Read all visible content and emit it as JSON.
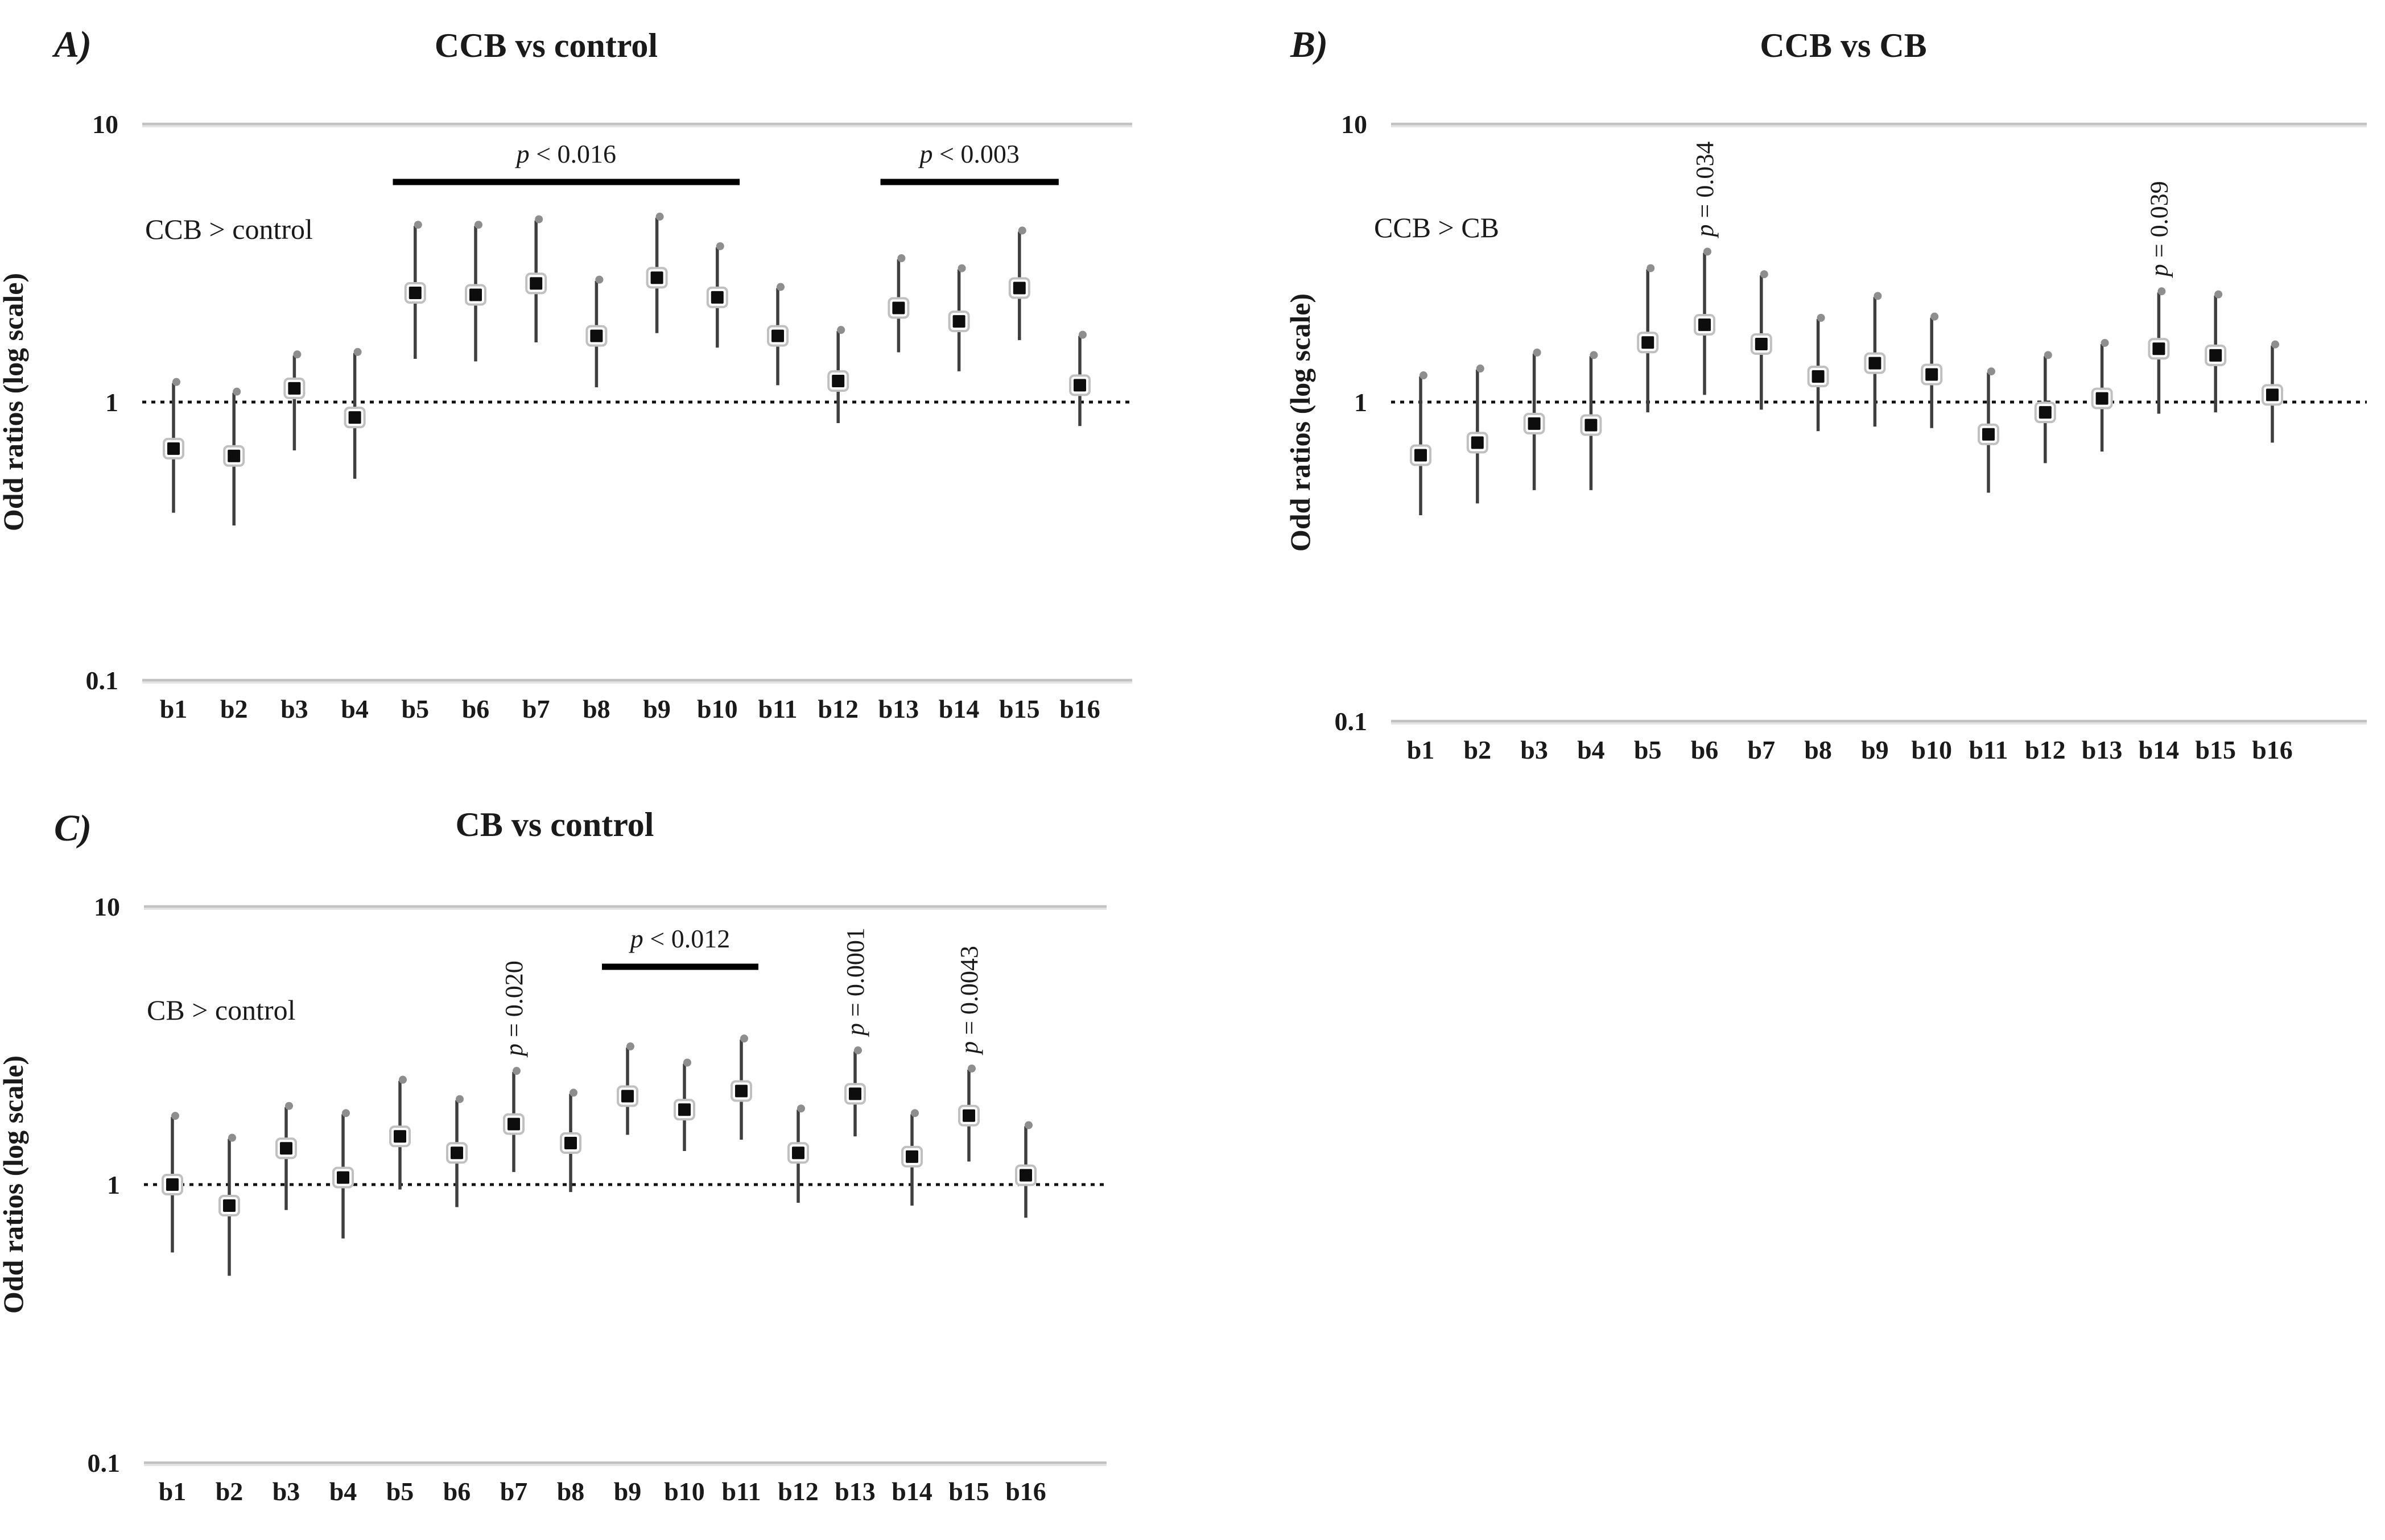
{
  "figure": {
    "background": "#ffffff",
    "colors": {
      "text": "#1a1a1a",
      "whisker": "#3f3f3f",
      "cap_dot": "#8e8e8e",
      "marker_fill": "#0d0d0d",
      "marker_box_fill": "#ffffff",
      "marker_box_stroke": "#c0c0c0",
      "gridline": "#c2c2c2",
      "gridline_soft": "#e4e4e4",
      "reference_line": "#111111",
      "bracket": "#000000"
    },
    "y_axis_title": "Odd ratios (log scale)",
    "y_ticks": [
      "10",
      "1",
      "0.1"
    ]
  },
  "chart_data": [
    {
      "id": "A",
      "panel_label": "A)",
      "title": "CCB vs control",
      "comparison_note": "CCB > control",
      "type": "scatter",
      "subtype": "forest-errorbar",
      "yscale": "log",
      "ylim": [
        0.1,
        10
      ],
      "reference_value": 1,
      "ylabel": "Odd ratios (log scale)",
      "grid": "horizontal-top-bottom-only",
      "legend": "none",
      "categories": [
        "b1",
        "b2",
        "b3",
        "b4",
        "b5",
        "b6",
        "b7",
        "b8",
        "b9",
        "b10",
        "b11",
        "b12",
        "b13",
        "b14",
        "b15",
        "b16"
      ],
      "series": [
        {
          "name": "odds_ratio",
          "values": [
            0.68,
            0.64,
            1.12,
            0.88,
            2.47,
            2.43,
            2.67,
            1.73,
            2.8,
            2.38,
            1.73,
            1.19,
            2.18,
            1.95,
            2.57,
            1.15
          ]
        },
        {
          "name": "ci_lower",
          "values": [
            0.4,
            0.36,
            0.67,
            0.53,
            1.43,
            1.4,
            1.64,
            1.13,
            1.77,
            1.57,
            1.15,
            0.84,
            1.51,
            1.29,
            1.67,
            0.82
          ]
        },
        {
          "name": "ci_upper",
          "values": [
            1.17,
            1.08,
            1.47,
            1.5,
            4.3,
            4.3,
            4.5,
            2.73,
            4.6,
            3.6,
            2.57,
            1.8,
            3.26,
            3.0,
            4.1,
            1.73
          ]
        }
      ],
      "annotations": [
        {
          "type": "bracket",
          "text": "p < 0.016",
          "from": "b5",
          "to": "b10",
          "padL": 0.37,
          "padR": 0.37
        },
        {
          "type": "bracket",
          "text": "p < 0.003",
          "from": "b13",
          "to": "b15",
          "padL": 0.3,
          "padR": 0.65
        }
      ],
      "layout": {
        "x0": 250,
        "x1": 1990,
        "y10": 218,
        "y1": 707,
        "y01": 1196,
        "decade": 489,
        "b1x": 305,
        "dx": 106.2,
        "labelY": 1262,
        "titleX": 960,
        "titleY": 100,
        "letterX": 95,
        "letterY": 100,
        "noteX": 255,
        "noteY": 420,
        "axisX": 40,
        "bracketY": 320
      }
    },
    {
      "id": "B",
      "panel_label": "B)",
      "title": "CCB vs CB",
      "comparison_note": "CCB > CB",
      "type": "scatter",
      "subtype": "forest-errorbar",
      "yscale": "log",
      "ylim": [
        0.1,
        10
      ],
      "reference_value": 1,
      "ylabel": "Odd ratios (log scale)",
      "grid": "horizontal-top-bottom-only",
      "legend": "none",
      "categories": [
        "b1",
        "b2",
        "b3",
        "b4",
        "b5",
        "b6",
        "b7",
        "b8",
        "b9",
        "b10",
        "b11",
        "b12",
        "b13",
        "b14",
        "b15",
        "b16"
      ],
      "series": [
        {
          "name": "odds_ratio",
          "values": [
            0.65,
            0.72,
            0.84,
            0.83,
            1.62,
            1.87,
            1.6,
            1.23,
            1.37,
            1.25,
            0.77,
            0.92,
            1.03,
            1.54,
            1.46,
            1.06
          ]
        },
        {
          "name": "ci_lower",
          "values": [
            0.4,
            0.44,
            0.49,
            0.49,
            0.92,
            1.06,
            0.94,
            0.79,
            0.82,
            0.81,
            0.48,
            0.61,
            0.67,
            0.91,
            0.92,
            0.72
          ]
        },
        {
          "name": "ci_upper",
          "values": [
            1.23,
            1.3,
            1.48,
            1.45,
            2.93,
            3.35,
            2.79,
            1.96,
            2.34,
            1.98,
            1.27,
            1.45,
            1.6,
            2.43,
            2.37,
            1.58
          ]
        }
      ],
      "annotations": [
        {
          "type": "rotated",
          "text": "p = 0.034",
          "at": "b6"
        },
        {
          "type": "rotated",
          "text": "p = 0.039",
          "at": "b14"
        }
      ],
      "layout": {
        "x0": 2445,
        "x1": 4160,
        "y10": 218,
        "y1": 707,
        "y01": 1268,
        "decade": 500,
        "b1x": 2497,
        "dx": 99.8,
        "labelY": 1334,
        "titleX": 3240,
        "titleY": 100,
        "letterX": 2268,
        "letterY": 100,
        "noteX": 2415,
        "noteY": 417,
        "axisX": 2302,
        "bracketY": 320
      }
    },
    {
      "id": "C",
      "panel_label": "C)",
      "title": "CB vs control",
      "comparison_note": "CB > control",
      "type": "scatter",
      "subtype": "forest-errorbar",
      "yscale": "log",
      "ylim": [
        0.1,
        10
      ],
      "reference_value": 1,
      "ylabel": "Odd ratios (log scale)",
      "grid": "horizontal-top-bottom-only",
      "legend": "none",
      "categories": [
        "b1",
        "b2",
        "b3",
        "b4",
        "b5",
        "b6",
        "b7",
        "b8",
        "b9",
        "b10",
        "b11",
        "b12",
        "b13",
        "b14",
        "b15",
        "b16"
      ],
      "series": [
        {
          "name": "odds_ratio",
          "values": [
            1.0,
            0.84,
            1.35,
            1.06,
            1.49,
            1.3,
            1.65,
            1.41,
            2.08,
            1.86,
            2.17,
            1.3,
            2.12,
            1.26,
            1.77,
            1.08
          ]
        },
        {
          "name": "ci_lower",
          "values": [
            0.57,
            0.47,
            0.81,
            0.64,
            0.96,
            0.83,
            1.11,
            0.94,
            1.51,
            1.32,
            1.45,
            0.86,
            1.49,
            0.84,
            1.21,
            0.76
          ]
        },
        {
          "name": "ci_upper",
          "values": [
            1.75,
            1.46,
            1.9,
            1.79,
            2.36,
            2.01,
            2.54,
            2.12,
            3.11,
            2.72,
            3.32,
            1.86,
            3.01,
            1.79,
            2.59,
            1.62
          ]
        }
      ],
      "annotations": [
        {
          "type": "rotated",
          "text": "p = 0.020",
          "at": "b7"
        },
        {
          "type": "bracket",
          "text": "p < 0.012",
          "from": "b9",
          "to": "b11",
          "padL": 0.45,
          "padR": 0.3
        },
        {
          "type": "rotated",
          "text": "p = 0.0001",
          "at": "b13"
        },
        {
          "type": "rotated",
          "text": "p = 0.0043",
          "at": "b15"
        }
      ],
      "layout": {
        "x0": 253,
        "x1": 1945,
        "y10": 1594,
        "y1": 2083,
        "y01": 2572,
        "decade": 489,
        "b1x": 303,
        "dx": 100,
        "labelY": 2638,
        "titleX": 975,
        "titleY": 1470,
        "letterX": 95,
        "letterY": 1478,
        "noteX": 258,
        "noteY": 1793,
        "axisX": 40,
        "bracketY": 1700
      }
    }
  ]
}
